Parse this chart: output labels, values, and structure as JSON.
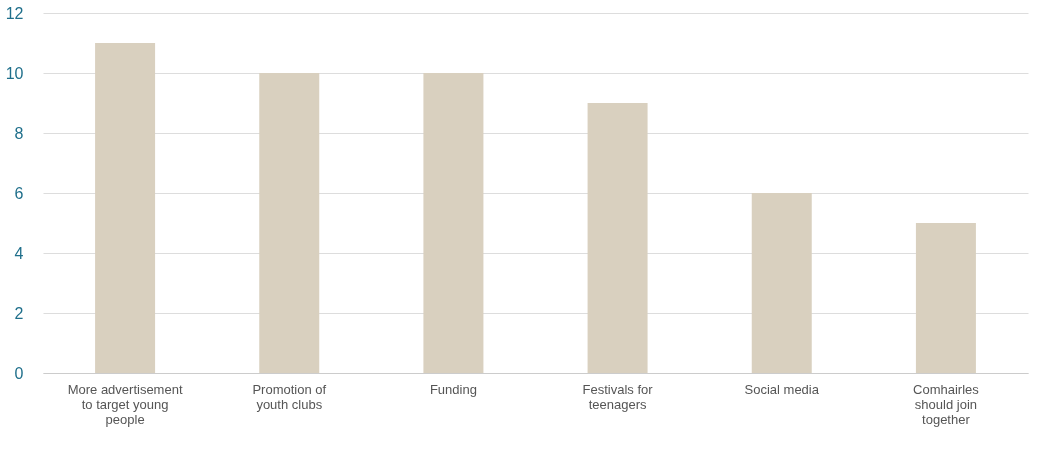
{
  "chart_data": {
    "type": "bar",
    "categories": [
      "More advertisement to target young people",
      "Promotion of youth clubs",
      "Funding",
      "Festivals for teenagers",
      "Social media",
      "Comhairles should join together"
    ],
    "values": [
      11,
      10,
      10,
      9,
      6,
      5
    ],
    "color": "#d9d0bf",
    "ylim": [
      0,
      12
    ],
    "yticks": [
      0,
      2,
      4,
      6,
      8,
      10,
      12
    ],
    "grid": "y"
  }
}
